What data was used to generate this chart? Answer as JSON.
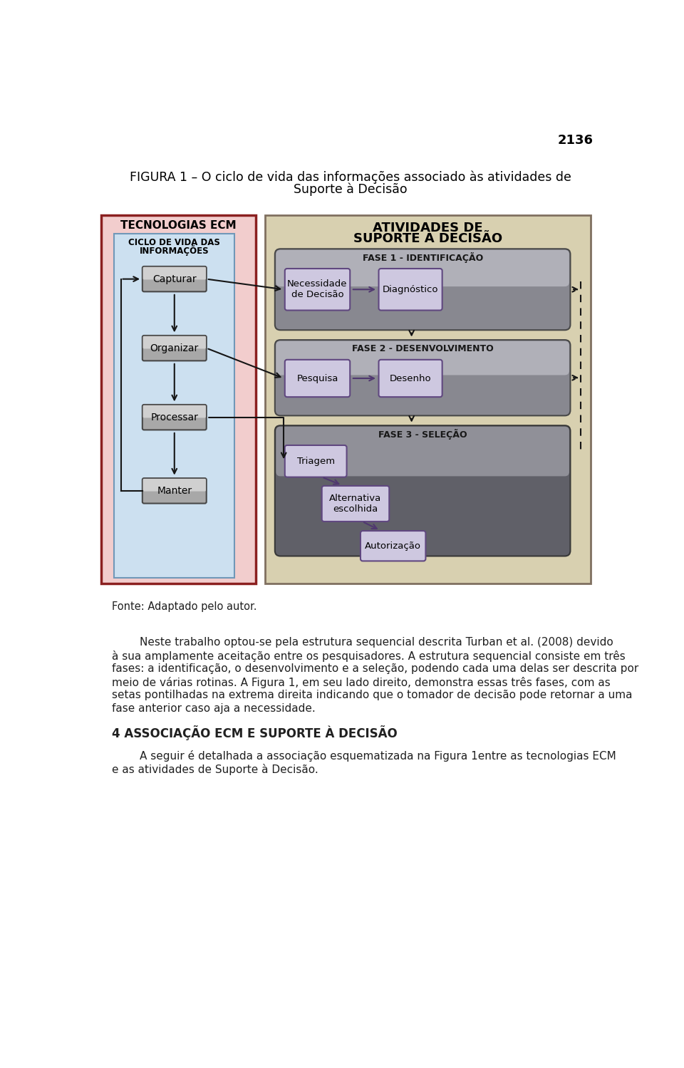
{
  "page_number": "2136",
  "title_line1": "FIGURA 1 – O ciclo de vida das informações associado às atividades de",
  "title_line2": "Suporte à Decisão",
  "fonte": "Fonte: Adaptado pelo autor.",
  "left_box_title": "TECNOLOGIAS ECM",
  "left_inner_title1": "CICLO DE VIDA DAS",
  "left_inner_title2": "INFORMAÇÕES",
  "left_nodes": [
    "Capturar",
    "Organizar",
    "Processar",
    "Manter"
  ],
  "right_box_title1": "ATIVIDADES DE",
  "right_box_title2": "SUPORTE À DECISÃO",
  "fase1_label": "FASE 1 - IDENTIFICAÇÃO",
  "fase1_nodes": [
    "Necessidade\nde Decisão",
    "Diagnóstico"
  ],
  "fase2_label": "FASE 2 - DESENVOLVIMENTO",
  "fase2_nodes": [
    "Pesquisa",
    "Desenho"
  ],
  "fase3_label": "FASE 3 - SELEÇÃO",
  "fase3_nodes": [
    "Triagem",
    "Alternativa\nescolhida",
    "Autorização"
  ],
  "paragraph1": "        Neste trabalho optou-se pela estrutura sequencial descrita Turban et al. (2008) devido à sua amplamente aceitação entre os pesquisadores. A estrutura sequencial consiste em três fases: a identificação, o desenvolvimento e a seleção, podendo cada uma delas ser descrita por meio de várias rotinas. A Figura 1, em seu lado direito, demonstra essas três fases, com as setas pontilhadas na extrema direita indicando que o tomador de decisão pode retornar a uma fase anterior caso aja a necessidade.",
  "section_title": "4 ASSOCIAÇÃO ECM E SUPORTE À DECISÃO",
  "paragraph2": "        A seguir é detalhada a associação esquematizada na Figura 1entre as tecnologias ECM e as atividades de Suporte à Decisão.",
  "bg_color": "#ffffff",
  "left_outer_bg": "#f2cdcd",
  "left_outer_border": "#8b2020",
  "left_inner_bg": "#cce0f0",
  "left_inner_border": "#7098b8",
  "right_outer_bg": "#d8d0b0",
  "right_outer_border": "#807060",
  "fase_bg_light": "#b0b0b8",
  "fase_bg_dark": "#888890",
  "fase3_bg_light": "#909098",
  "fase3_bg_dark": "#606068",
  "node_purple_bg": "#cec8e0",
  "node_purple_border": "#604880",
  "purple_arrow": "#503870",
  "dark_arrow": "#151515"
}
